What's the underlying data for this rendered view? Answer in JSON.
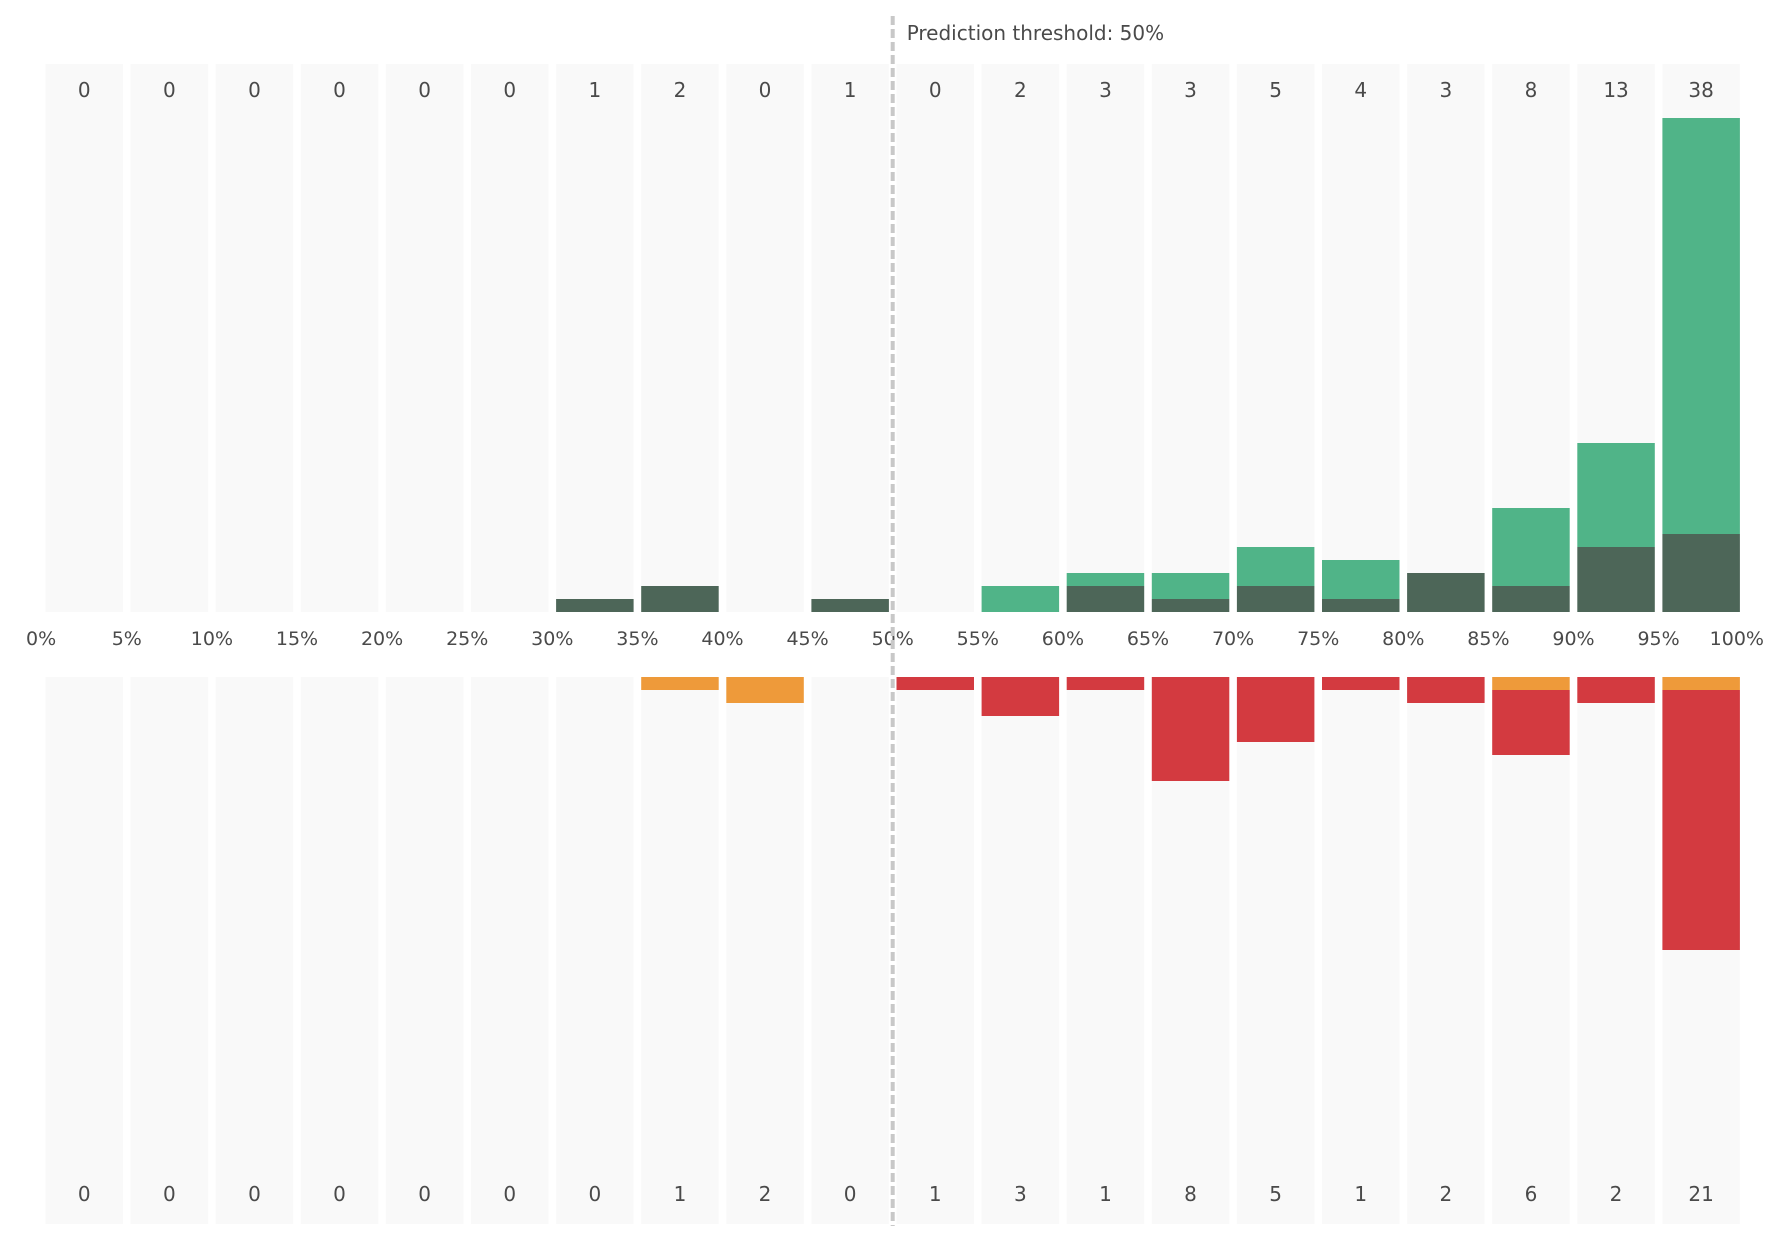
{
  "chart_data": {
    "type": "bar",
    "x_ticks": [
      "0%",
      "5%",
      "10%",
      "15%",
      "20%",
      "25%",
      "30%",
      "35%",
      "40%",
      "45%",
      "50%",
      "55%",
      "60%",
      "65%",
      "70%",
      "75%",
      "80%",
      "85%",
      "90%",
      "95%",
      "100%"
    ],
    "threshold": {
      "value": 50,
      "label": "Prediction threshold: 50%"
    },
    "top": {
      "totals": [
        0,
        0,
        0,
        0,
        0,
        0,
        1,
        2,
        0,
        1,
        0,
        2,
        3,
        3,
        5,
        4,
        3,
        8,
        13,
        38
      ],
      "series": [
        {
          "color": "#4d6658",
          "values": [
            0,
            0,
            0,
            0,
            0,
            0,
            1,
            2,
            0,
            1,
            0,
            0,
            2,
            1,
            2,
            1,
            3,
            2,
            5,
            6
          ]
        },
        {
          "color": "#50b488",
          "values": [
            0,
            0,
            0,
            0,
            0,
            0,
            0,
            0,
            0,
            0,
            0,
            2,
            1,
            2,
            3,
            3,
            0,
            6,
            8,
            32
          ]
        }
      ]
    },
    "bottom": {
      "totals": [
        0,
        0,
        0,
        0,
        0,
        0,
        0,
        1,
        2,
        0,
        1,
        3,
        1,
        8,
        5,
        1,
        2,
        6,
        2,
        21
      ],
      "series": [
        {
          "color": "#ee9a3a",
          "values": [
            0,
            0,
            0,
            0,
            0,
            0,
            0,
            1,
            2,
            0,
            0,
            0,
            0,
            0,
            0,
            0,
            0,
            1,
            0,
            1
          ]
        },
        {
          "color": "#d33a40",
          "values": [
            0,
            0,
            0,
            0,
            0,
            0,
            0,
            0,
            0,
            0,
            1,
            3,
            1,
            8,
            5,
            1,
            2,
            5,
            2,
            20
          ]
        }
      ]
    },
    "colors": {
      "column_bg": "#f9f9f9",
      "threshold_line": "#c8c8c8",
      "text": "#4a4a4a"
    }
  }
}
